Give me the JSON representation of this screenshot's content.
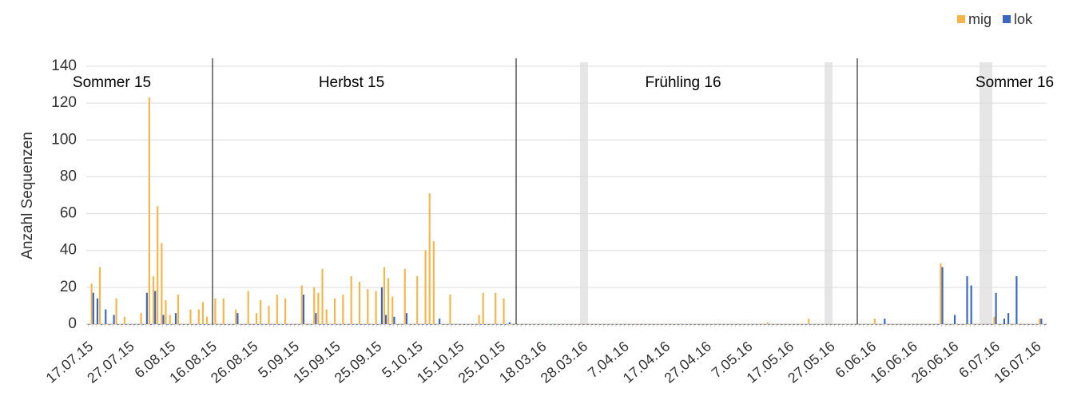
{
  "chart_data": {
    "type": "bar",
    "y_label": "Anzahl Sequenzen",
    "annotations": [
      "Sommer 15",
      "Herbst 15",
      "Frühling 16",
      "Sommer 16"
    ],
    "categories": [
      "17.07.15",
      null,
      null,
      null,
      null,
      null,
      null,
      null,
      null,
      null,
      "27.07.15",
      null,
      null,
      null,
      null,
      null,
      null,
      null,
      null,
      null,
      "6.08.15",
      null,
      null,
      null,
      null,
      null,
      null,
      null,
      null,
      null,
      "16.08.15",
      null,
      null,
      null,
      null,
      null,
      null,
      null,
      null,
      null,
      "26.08.15",
      null,
      null,
      null,
      null,
      null,
      null,
      null,
      null,
      null,
      "5.09.15",
      null,
      null,
      null,
      null,
      null,
      null,
      null,
      null,
      null,
      "15.09.15",
      null,
      null,
      null,
      null,
      null,
      null,
      null,
      null,
      null,
      "25.09.15",
      null,
      null,
      null,
      null,
      null,
      null,
      null,
      null,
      null,
      "5.10.15",
      null,
      null,
      null,
      null,
      null,
      null,
      null,
      null,
      null,
      "15.10.15",
      null,
      null,
      null,
      null,
      null,
      null,
      null,
      null,
      null,
      "25.10.15",
      null,
      null,
      null,
      null,
      null,
      null,
      null,
      null,
      null,
      "18.03.16",
      null,
      null,
      null,
      null,
      null,
      null,
      null,
      null,
      null,
      "28.03.16",
      null,
      null,
      null,
      null,
      null,
      null,
      null,
      null,
      null,
      "7.04.16",
      null,
      null,
      null,
      null,
      null,
      null,
      null,
      null,
      null,
      "17.04.16",
      null,
      null,
      null,
      null,
      null,
      null,
      null,
      null,
      null,
      "27.04.16",
      null,
      null,
      null,
      null,
      null,
      null,
      null,
      null,
      null,
      "7.05.16",
      null,
      null,
      null,
      null,
      null,
      null,
      null,
      null,
      null,
      "17.05.16",
      null,
      null,
      null,
      null,
      null,
      null,
      null,
      null,
      null,
      "27.05.16",
      null,
      null,
      null,
      null,
      null,
      null,
      null,
      null,
      null,
      "6.06.16",
      null,
      null,
      null,
      null,
      null,
      null,
      null,
      null,
      null,
      "16.06.16",
      null,
      null,
      null,
      null,
      null,
      null,
      null,
      null,
      null,
      "26.06.16",
      null,
      null,
      null,
      null,
      null,
      null,
      null,
      null,
      null,
      "6.07.16",
      null,
      null,
      null,
      null,
      null,
      null,
      null,
      null,
      null,
      "16.07.16",
      null,
      null
    ],
    "series": [
      {
        "name": "mig",
        "color": "#f5b54a",
        "values": [
          0,
          22,
          0,
          31,
          0,
          0,
          0,
          14,
          0,
          4,
          0,
          0,
          0,
          6,
          0,
          123,
          26,
          64,
          44,
          13,
          5,
          0,
          16,
          0,
          0,
          8,
          0,
          8,
          12,
          4,
          0,
          14,
          0,
          14,
          0,
          0,
          8,
          0,
          0,
          18,
          0,
          6,
          13,
          0,
          10,
          0,
          16,
          0,
          14,
          0,
          0,
          0,
          21,
          0,
          0,
          20,
          17,
          30,
          8,
          0,
          14,
          0,
          16,
          0,
          26,
          0,
          23,
          0,
          19,
          0,
          18,
          0,
          31,
          25,
          15,
          0,
          0,
          30,
          0,
          0,
          26,
          0,
          40,
          71,
          45,
          0,
          0,
          0,
          16,
          0,
          0,
          0,
          0,
          0,
          0,
          5,
          17,
          0,
          0,
          17,
          0,
          14,
          0,
          0,
          0,
          0,
          0,
          0,
          0,
          0,
          0,
          0,
          0,
          0,
          0,
          0,
          0,
          0,
          0,
          0,
          0,
          0,
          0,
          0,
          0,
          0,
          0,
          0,
          0,
          0,
          0,
          0,
          0,
          0,
          0,
          0,
          0,
          0,
          0,
          0,
          0,
          0,
          0,
          0,
          0,
          0,
          0,
          0,
          0,
          0,
          0,
          0,
          0,
          0,
          0,
          0,
          0,
          0,
          0,
          0,
          0,
          0,
          0,
          0,
          0,
          1,
          0,
          0,
          0,
          0,
          0,
          0,
          0,
          0,
          0,
          3,
          0,
          0,
          0,
          0,
          0,
          0,
          0,
          0,
          0,
          0,
          0,
          0,
          0,
          0,
          0,
          3,
          0,
          0,
          0,
          0,
          0,
          0,
          0,
          0,
          0,
          0,
          0,
          0,
          0,
          0,
          0,
          33,
          0,
          0,
          0,
          0,
          0,
          0,
          0,
          0,
          0,
          0,
          0,
          0,
          4,
          0,
          0,
          0,
          0,
          0,
          0,
          0,
          0,
          0,
          0,
          3,
          0
        ]
      },
      {
        "name": "lok",
        "color": "#3a66c4",
        "values": [
          0,
          17,
          14,
          0,
          8,
          0,
          5,
          0,
          0,
          0,
          0,
          0,
          0,
          0,
          17,
          0,
          18,
          0,
          5,
          0,
          0,
          6,
          0,
          0,
          0,
          0,
          0,
          0,
          0,
          0,
          0,
          0,
          0,
          0,
          0,
          0,
          6,
          0,
          0,
          0,
          0,
          0,
          0,
          0,
          0,
          0,
          0,
          0,
          0,
          0,
          0,
          0,
          16,
          0,
          0,
          6,
          0,
          0,
          0,
          0,
          0,
          0,
          0,
          0,
          0,
          0,
          0,
          0,
          0,
          0,
          0,
          20,
          5,
          0,
          4,
          0,
          0,
          6,
          0,
          0,
          0,
          0,
          0,
          0,
          0,
          3,
          0,
          0,
          0,
          0,
          0,
          0,
          0,
          0,
          0,
          0,
          0,
          0,
          0,
          0,
          0,
          0,
          1,
          0,
          0,
          0,
          0,
          0,
          0,
          0,
          0,
          0,
          0,
          0,
          0,
          0,
          0,
          0,
          0,
          0,
          0,
          0,
          0,
          0,
          0,
          0,
          0,
          0,
          0,
          0,
          0,
          0,
          0,
          0,
          0,
          0,
          0,
          0,
          0,
          0,
          0,
          0,
          0,
          0,
          0,
          0,
          0,
          0,
          0,
          0,
          0,
          0,
          0,
          0,
          0,
          0,
          0,
          0,
          0,
          0,
          0,
          0,
          0,
          0,
          0,
          0,
          0,
          0,
          0,
          0,
          0,
          0,
          0,
          0,
          0,
          0,
          0,
          0,
          0,
          0,
          0,
          0,
          0,
          0,
          0,
          0,
          0,
          0,
          0,
          0,
          0,
          0,
          0,
          3,
          0,
          0,
          0,
          0,
          0,
          0,
          0,
          0,
          0,
          0,
          0,
          0,
          0,
          31,
          0,
          0,
          5,
          0,
          0,
          26,
          21,
          0,
          0,
          0,
          0,
          0,
          17,
          0,
          3,
          6,
          0,
          26,
          0,
          0,
          0,
          0,
          0,
          3,
          0
        ]
      }
    ],
    "ylim": [
      0,
      140
    ],
    "yticks": [
      0,
      20,
      40,
      60,
      80,
      100,
      120,
      140
    ],
    "grid": true,
    "legend": "top-right"
  }
}
